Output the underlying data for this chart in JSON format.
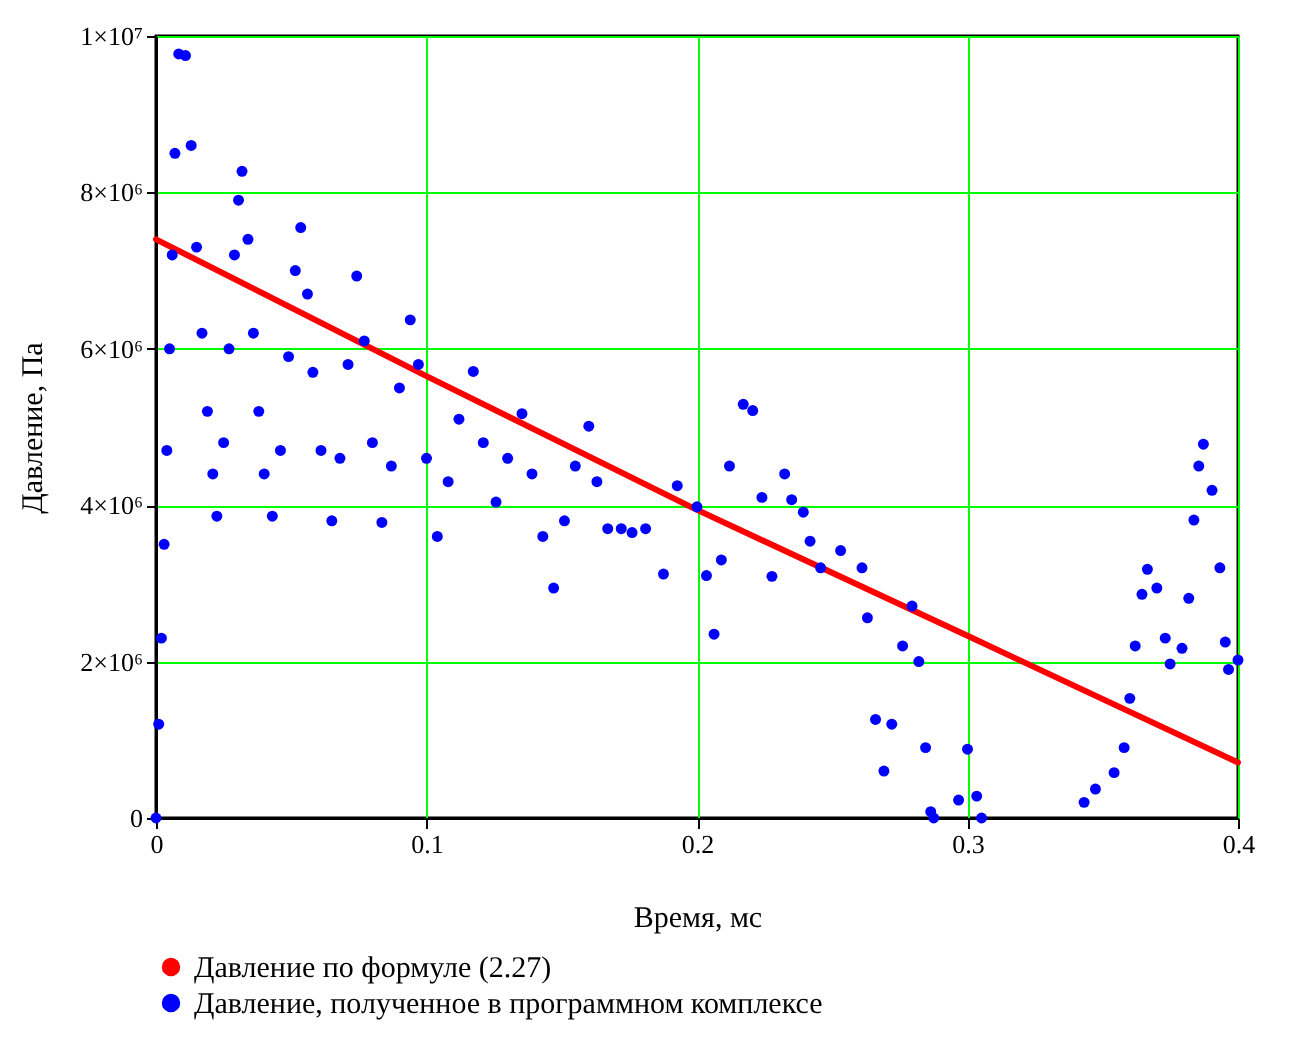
{
  "chart_data": {
    "type": "line",
    "xlabel": "Время, мс",
    "ylabel": "Давление, Па",
    "xlim": [
      0,
      0.4
    ],
    "xticks": [
      0,
      0.1,
      0.2,
      0.3,
      0.4
    ],
    "ylim": [
      0,
      10000000
    ],
    "yticks": [
      {
        "value": 0,
        "label": "0"
      },
      {
        "value": 2000000,
        "label": "2×10⁶"
      },
      {
        "value": 4000000,
        "label": "4×10⁶"
      },
      {
        "value": 6000000,
        "label": "6×10⁶"
      },
      {
        "value": 8000000,
        "label": "8×10⁶"
      },
      {
        "value": 10000000,
        "label": "1×10⁷"
      }
    ],
    "grid": true,
    "legend": "bottom",
    "series": [
      {
        "name": "Давление по формуле (2.27)",
        "color": "#ff0000",
        "line_style": "solid",
        "x": [
          0,
          0.1,
          0.2,
          0.3,
          0.4
        ],
        "values": [
          7400000,
          5650000,
          3940000,
          2330000,
          710000
        ]
      },
      {
        "name": "Давление, полученное в программном комплексе",
        "type": "scatter",
        "marker": "circle",
        "color": "#0000ff",
        "x": [
          0,
          0.001,
          0.002,
          0.003,
          0.004,
          0.005,
          0.006,
          0.007,
          0.0084,
          0.0109,
          0.013,
          0.015,
          0.017,
          0.019,
          0.021,
          0.0225,
          0.025,
          0.027,
          0.029,
          0.0305,
          0.0318,
          0.034,
          0.036,
          0.038,
          0.04,
          0.043,
          0.046,
          0.049,
          0.0515,
          0.0535,
          0.056,
          0.058,
          0.061,
          0.065,
          0.068,
          0.071,
          0.0742,
          0.077,
          0.08,
          0.0835,
          0.087,
          0.09,
          0.094,
          0.097,
          0.1,
          0.104,
          0.108,
          0.112,
          0.1173,
          0.121,
          0.1257,
          0.13,
          0.1353,
          0.139,
          0.143,
          0.147,
          0.151,
          0.155,
          0.16,
          0.163,
          0.167,
          0.172,
          0.176,
          0.181,
          0.1876,
          0.1927,
          0.2,
          0.2035,
          0.2063,
          0.209,
          0.212,
          0.2171,
          0.2206,
          0.224,
          0.2277,
          0.2324,
          0.235,
          0.2393,
          0.2418,
          0.2457,
          0.2531,
          0.261,
          0.263,
          0.266,
          0.2691,
          0.272,
          0.276,
          0.2795,
          0.282,
          0.2845,
          0.2864,
          0.2875,
          0.2967,
          0.3,
          0.3034,
          0.3052,
          0.3431,
          0.3473,
          0.3542,
          0.3579,
          0.36,
          0.362,
          0.3645,
          0.3665,
          0.37,
          0.3731,
          0.3749,
          0.3793,
          0.3818,
          0.3837,
          0.3855,
          0.3872,
          0.3904,
          0.3933,
          0.3953,
          0.3965,
          0.4
        ],
        "values": [
          0,
          1200000,
          2300000,
          3500000,
          4700000,
          6000000,
          7200000,
          8500000,
          9770000,
          9750000,
          8600000,
          7300000,
          6200000,
          5200000,
          4400000,
          3860000,
          4800000,
          6000000,
          7200000,
          7900000,
          8270000,
          7400000,
          6200000,
          5200000,
          4400000,
          3860000,
          4700000,
          5900000,
          7000000,
          7550000,
          6700000,
          5700000,
          4700000,
          3800000,
          4600000,
          5800000,
          6930000,
          6100000,
          4800000,
          3780000,
          4500000,
          5500000,
          6370000,
          5800000,
          4600000,
          3600000,
          4300000,
          5100000,
          5710000,
          4800000,
          4040000,
          4600000,
          5170000,
          4400000,
          3600000,
          2940000,
          3800000,
          4500000,
          5010000,
          4300000,
          3700000,
          3700000,
          3650000,
          3700000,
          3120000,
          4250000,
          3980000,
          3100000,
          2350000,
          3300000,
          4500000,
          5290000,
          5210000,
          4100000,
          3090000,
          4400000,
          4070000,
          3910000,
          3540000,
          3200000,
          3420000,
          3200000,
          2560000,
          1260000,
          600000,
          1200000,
          2200000,
          2710000,
          2000000,
          900000,
          80000,
          0,
          230000,
          880000,
          280000,
          0,
          200000,
          370000,
          580000,
          900000,
          1530000,
          2200000,
          2860000,
          3180000,
          2940000,
          2300000,
          1970000,
          2170000,
          2810000,
          3810000,
          4500000,
          4780000,
          4190000,
          3200000,
          2250000,
          1900000,
          2020000
        ]
      }
    ]
  }
}
